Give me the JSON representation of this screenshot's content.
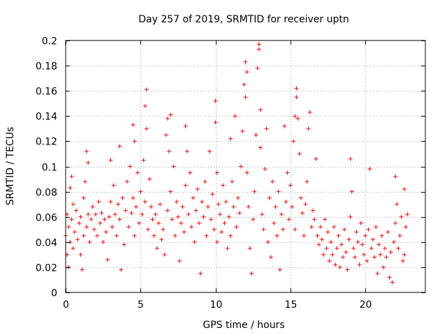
{
  "chart_data": {
    "type": "scatter",
    "title": "Day 257 of 2019, SRMTID for receiver uptn",
    "xlabel": "GPS time / hours",
    "ylabel": "SRMTID / TECUs",
    "xlim": [
      0,
      24
    ],
    "ylim": [
      0,
      0.2
    ],
    "xticks": [
      0,
      5,
      10,
      15,
      20
    ],
    "xtick_labels": [
      "0",
      "5",
      "10",
      "15",
      "20"
    ],
    "yticks": [
      0,
      0.02,
      0.04,
      0.06,
      0.08,
      0.1,
      0.12,
      0.14,
      0.16,
      0.18,
      0.2
    ],
    "ytick_labels": [
      "0",
      "0.02",
      "0.04",
      "0.06",
      "0.08",
      "0.1",
      "0.12",
      "0.14",
      "0.16",
      "0.18",
      "0.2"
    ],
    "grid": true,
    "marker": "+",
    "color": "#ff0000",
    "series": [
      {
        "name": "SRMTID",
        "points": [
          [
            0.0,
            0.045
          ],
          [
            0.1,
            0.03
          ],
          [
            0.1,
            0.062
          ],
          [
            0.2,
            0.02
          ],
          [
            0.2,
            0.052
          ],
          [
            0.3,
            0.083
          ],
          [
            0.3,
            0.04
          ],
          [
            0.4,
            0.092
          ],
          [
            0.4,
            0.058
          ],
          [
            0.5,
            0.07
          ],
          [
            0.5,
            0.035
          ],
          [
            0.6,
            0.048
          ],
          [
            0.7,
            0.065
          ],
          [
            0.8,
            0.042
          ],
          [
            0.9,
            0.055
          ],
          [
            1.0,
            0.03
          ],
          [
            1.0,
            0.06
          ],
          [
            1.1,
            0.018
          ],
          [
            1.2,
            0.075
          ],
          [
            1.2,
            0.045
          ],
          [
            1.3,
            0.088
          ],
          [
            1.4,
            0.112
          ],
          [
            1.4,
            0.052
          ],
          [
            1.5,
            0.103
          ],
          [
            1.5,
            0.062
          ],
          [
            1.6,
            0.04
          ],
          [
            1.7,
            0.058
          ],
          [
            1.8,
            0.068
          ],
          [
            1.9,
            0.05
          ],
          [
            2.0,
            0.062
          ],
          [
            2.1,
            0.045
          ],
          [
            2.2,
            0.072
          ],
          [
            2.3,
            0.055
          ],
          [
            2.4,
            0.063
          ],
          [
            2.5,
            0.04
          ],
          [
            2.6,
            0.058
          ],
          [
            2.7,
            0.048
          ],
          [
            2.8,
            0.026
          ],
          [
            2.9,
            0.06
          ],
          [
            3.0,
            0.072
          ],
          [
            3.0,
            0.105
          ],
          [
            3.1,
            0.052
          ],
          [
            3.2,
            0.085
          ],
          [
            3.3,
            0.062
          ],
          [
            3.4,
            0.045
          ],
          [
            3.5,
            0.07
          ],
          [
            3.6,
            0.116
          ],
          [
            3.6,
            0.058
          ],
          [
            3.7,
            0.018
          ],
          [
            3.8,
            0.075
          ],
          [
            3.9,
            0.038
          ],
          [
            4.0,
            0.065
          ],
          [
            4.1,
            0.088
          ],
          [
            4.2,
            0.052
          ],
          [
            4.3,
            0.1
          ],
          [
            4.4,
            0.063
          ],
          [
            4.5,
            0.133
          ],
          [
            4.5,
            0.075
          ],
          [
            4.6,
            0.12
          ],
          [
            4.6,
            0.045
          ],
          [
            4.7,
            0.068
          ],
          [
            4.8,
            0.095
          ],
          [
            4.9,
            0.055
          ],
          [
            5.0,
            0.08
          ],
          [
            5.1,
            0.062
          ],
          [
            5.2,
            0.105
          ],
          [
            5.3,
            0.148
          ],
          [
            5.3,
            0.072
          ],
          [
            5.4,
            0.161
          ],
          [
            5.4,
            0.13
          ],
          [
            5.5,
            0.05
          ],
          [
            5.6,
            0.09
          ],
          [
            5.7,
            0.068
          ],
          [
            5.8,
            0.058
          ],
          [
            5.9,
            0.045
          ],
          [
            6.0,
            0.062
          ],
          [
            6.1,
            0.035
          ],
          [
            6.2,
            0.055
          ],
          [
            6.3,
            0.07
          ],
          [
            6.4,
            0.042
          ],
          [
            6.5,
            0.05
          ],
          [
            6.6,
            0.03
          ],
          [
            6.7,
            0.125
          ],
          [
            6.8,
            0.138
          ],
          [
            6.8,
            0.065
          ],
          [
            6.9,
            0.112
          ],
          [
            7.0,
            0.08
          ],
          [
            7.0,
            0.141
          ],
          [
            7.1,
            0.058
          ],
          [
            7.2,
            0.1
          ],
          [
            7.3,
            0.045
          ],
          [
            7.4,
            0.072
          ],
          [
            7.5,
            0.06
          ],
          [
            7.6,
            0.025
          ],
          [
            7.7,
            0.055
          ],
          [
            7.8,
            0.068
          ],
          [
            7.9,
            0.048
          ],
          [
            8.0,
            0.132
          ],
          [
            8.0,
            0.085
          ],
          [
            8.1,
            0.112
          ],
          [
            8.2,
            0.062
          ],
          [
            8.3,
            0.095
          ],
          [
            8.4,
            0.052
          ],
          [
            8.5,
            0.075
          ],
          [
            8.6,
            0.04
          ],
          [
            8.7,
            0.065
          ],
          [
            8.8,
            0.082
          ],
          [
            8.9,
            0.055
          ],
          [
            9.0,
            0.015
          ],
          [
            9.1,
            0.072
          ],
          [
            9.2,
            0.06
          ],
          [
            9.3,
            0.088
          ],
          [
            9.4,
            0.045
          ],
          [
            9.5,
            0.068
          ],
          [
            9.6,
            0.112
          ],
          [
            9.7,
            0.058
          ],
          [
            9.8,
            0.078
          ],
          [
            9.9,
            0.05
          ],
          [
            10.0,
            0.152
          ],
          [
            10.0,
            0.135
          ],
          [
            10.1,
            0.095
          ],
          [
            10.1,
            0.04
          ],
          [
            10.2,
            0.07
          ],
          [
            10.3,
            0.062
          ],
          [
            10.4,
            0.048
          ],
          [
            10.5,
            0.085
          ],
          [
            10.6,
            0.055
          ],
          [
            10.7,
            0.072
          ],
          [
            10.8,
            0.035
          ],
          [
            10.9,
            0.06
          ],
          [
            11.0,
            0.122
          ],
          [
            11.0,
            0.045
          ],
          [
            11.1,
            0.088
          ],
          [
            11.2,
            0.068
          ],
          [
            11.3,
            0.14
          ],
          [
            11.4,
            0.052
          ],
          [
            11.5,
            0.075
          ],
          [
            11.6,
            0.063
          ],
          [
            11.7,
            0.1
          ],
          [
            11.8,
            0.128
          ],
          [
            11.9,
            0.165
          ],
          [
            12.0,
            0.183
          ],
          [
            12.0,
            0.155
          ],
          [
            12.1,
            0.175
          ],
          [
            12.1,
            0.095
          ],
          [
            12.2,
            0.068
          ],
          [
            12.3,
            0.035
          ],
          [
            12.4,
            0.015
          ],
          [
            12.5,
            0.058
          ],
          [
            12.6,
            0.08
          ],
          [
            12.7,
            0.125
          ],
          [
            12.8,
            0.178
          ],
          [
            12.9,
            0.197
          ],
          [
            12.9,
            0.193
          ],
          [
            13.0,
            0.115
          ],
          [
            13.0,
            0.145
          ],
          [
            13.1,
            0.062
          ],
          [
            13.2,
            0.05
          ],
          [
            13.3,
            0.098
          ],
          [
            13.4,
            0.13
          ],
          [
            13.5,
            0.04
          ],
          [
            13.6,
            0.075
          ],
          [
            13.7,
            0.028
          ],
          [
            13.8,
            0.088
          ],
          [
            13.9,
            0.055
          ],
          [
            14.0,
            0.068
          ],
          [
            14.1,
            0.045
          ],
          [
            14.2,
            0.08
          ],
          [
            14.3,
            0.018
          ],
          [
            14.4,
            0.062
          ],
          [
            14.5,
            0.05
          ],
          [
            14.6,
            0.132
          ],
          [
            14.7,
            0.072
          ],
          [
            14.8,
            0.095
          ],
          [
            14.9,
            0.058
          ],
          [
            15.0,
            0.085
          ],
          [
            15.1,
            0.068
          ],
          [
            15.2,
            0.12
          ],
          [
            15.3,
            0.14
          ],
          [
            15.3,
            0.05
          ],
          [
            15.4,
            0.162
          ],
          [
            15.4,
            0.155
          ],
          [
            15.5,
            0.138
          ],
          [
            15.6,
            0.11
          ],
          [
            15.7,
            0.075
          ],
          [
            15.8,
            0.063
          ],
          [
            15.9,
            0.045
          ],
          [
            16.0,
            0.07
          ],
          [
            16.1,
            0.088
          ],
          [
            16.2,
            0.13
          ],
          [
            16.3,
            0.143
          ],
          [
            16.4,
            0.052
          ],
          [
            16.5,
            0.065
          ],
          [
            16.6,
            0.058
          ],
          [
            16.7,
            0.106
          ],
          [
            16.8,
            0.045
          ],
          [
            16.9,
            0.038
          ],
          [
            17.0,
            0.052
          ],
          [
            17.1,
            0.042
          ],
          [
            17.2,
            0.03
          ],
          [
            17.3,
            0.058
          ],
          [
            17.4,
            0.035
          ],
          [
            17.5,
            0.048
          ],
          [
            17.6,
            0.025
          ],
          [
            17.7,
            0.04
          ],
          [
            17.8,
            0.03
          ],
          [
            17.9,
            0.052
          ],
          [
            18.0,
            0.022
          ],
          [
            18.1,
            0.035
          ],
          [
            18.2,
            0.045
          ],
          [
            18.3,
            0.02
          ],
          [
            18.4,
            0.038
          ],
          [
            18.5,
            0.028
          ],
          [
            18.6,
            0.05
          ],
          [
            18.7,
            0.032
          ],
          [
            18.8,
            0.018
          ],
          [
            18.9,
            0.042
          ],
          [
            19.0,
            0.106
          ],
          [
            19.0,
            0.06
          ],
          [
            19.1,
            0.08
          ],
          [
            19.2,
            0.035
          ],
          [
            19.3,
            0.028
          ],
          [
            19.4,
            0.048
          ],
          [
            19.5,
            0.04
          ],
          [
            19.6,
            0.022
          ],
          [
            19.7,
            0.055
          ],
          [
            19.8,
            0.038
          ],
          [
            19.9,
            0.03
          ],
          [
            20.0,
            0.045
          ],
          [
            20.1,
            0.025
          ],
          [
            20.2,
            0.05
          ],
          [
            20.3,
            0.098
          ],
          [
            20.4,
            0.035
          ],
          [
            20.5,
            0.042
          ],
          [
            20.6,
            0.028
          ],
          [
            20.7,
            0.052
          ],
          [
            20.8,
            0.015
          ],
          [
            20.9,
            0.038
          ],
          [
            21.0,
            0.03
          ],
          [
            21.1,
            0.045
          ],
          [
            21.2,
            0.02
          ],
          [
            21.3,
            0.035
          ],
          [
            21.4,
            0.028
          ],
          [
            21.5,
            0.048
          ],
          [
            21.6,
            0.012
          ],
          [
            21.7,
            0.032
          ],
          [
            21.8,
            0.008
          ],
          [
            21.9,
            0.04
          ],
          [
            22.0,
            0.092
          ],
          [
            22.0,
            0.055
          ],
          [
            22.1,
            0.07
          ],
          [
            22.2,
            0.035
          ],
          [
            22.3,
            0.045
          ],
          [
            22.4,
            0.06
          ],
          [
            22.5,
            0.025
          ],
          [
            22.6,
            0.082
          ],
          [
            22.6,
            0.03
          ],
          [
            22.7,
            0.052
          ],
          [
            22.8,
            0.062
          ]
        ]
      }
    ]
  }
}
